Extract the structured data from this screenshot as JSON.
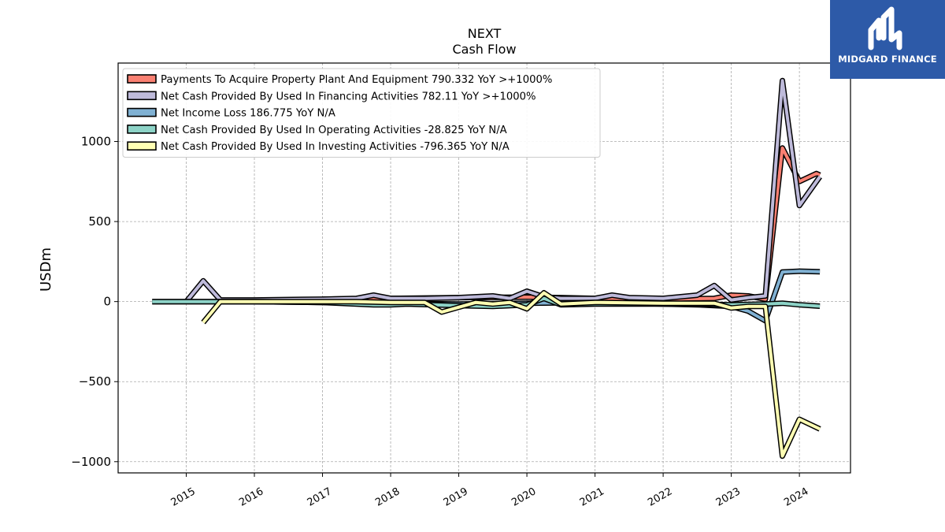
{
  "brand": {
    "name": "MIDGARD FINANCE",
    "color": "#2d5aa8"
  },
  "chart_data": {
    "type": "line",
    "title": "NEXT",
    "subtitle": "Cash Flow",
    "xlabel": "",
    "ylabel": "USDm",
    "xlim": [
      2014.0,
      2024.75
    ],
    "ylim": [
      -1070,
      1490
    ],
    "xticks": [
      2015,
      2016,
      2017,
      2018,
      2019,
      2020,
      2021,
      2022,
      2023,
      2024
    ],
    "yticks": [
      -1000,
      -500,
      0,
      500,
      1000
    ],
    "ytick_labels": [
      "−1000",
      "−500",
      "0",
      "500",
      "1000"
    ],
    "grid": true,
    "legend_position": "top-left",
    "series": [
      {
        "name": "Payments To Acquire Property Plant And Equipment  790.332 YoY >+1000%",
        "color": "#fa8072",
        "x": [
          2017.0,
          2018.0,
          2019.0,
          2020.0,
          2020.5,
          2021.0,
          2022.0,
          2022.75,
          2023.0,
          2023.25,
          2023.5,
          2023.75,
          2024.0,
          2024.25,
          2024.3
        ],
        "y": [
          15,
          20,
          25,
          28,
          25,
          20,
          15,
          20,
          40,
          35,
          15,
          960,
          750,
          800,
          790
        ]
      },
      {
        "name": "Net Cash Provided By Used In Financing Activities  782.11 YoY >+1000%",
        "color": "#bebada",
        "x": [
          2015.0,
          2015.25,
          2015.5,
          2016.0,
          2017.0,
          2017.5,
          2017.75,
          2018.0,
          2018.5,
          2019.0,
          2019.5,
          2019.75,
          2020.0,
          2020.25,
          2020.5,
          2021.0,
          2021.25,
          2021.5,
          2022.0,
          2022.5,
          2022.75,
          2023.0,
          2023.25,
          2023.5,
          2023.75,
          2024.0,
          2024.3
        ],
        "y": [
          0,
          130,
          10,
          10,
          15,
          20,
          40,
          20,
          20,
          25,
          35,
          20,
          65,
          30,
          20,
          20,
          40,
          25,
          20,
          40,
          100,
          10,
          25,
          35,
          1380,
          600,
          780
        ]
      },
      {
        "name": "Net Income Loss  186.775 YoY N/A",
        "color": "#80b1d3",
        "x": [
          2014.5,
          2015.0,
          2016.0,
          2017.0,
          2018.0,
          2019.0,
          2020.0,
          2021.0,
          2022.0,
          2022.5,
          2023.0,
          2023.25,
          2023.5,
          2023.75,
          2024.0,
          2024.3
        ],
        "y": [
          0,
          0,
          0,
          -5,
          -10,
          -15,
          -10,
          -5,
          -15,
          -20,
          -30,
          -60,
          -120,
          185,
          190,
          187
        ]
      },
      {
        "name": "Net Cash Provided By Used In Operating Activities  -28.825 YoY N/A",
        "color": "#8dd3c7",
        "x": [
          2014.5,
          2015.0,
          2016.0,
          2017.0,
          2017.75,
          2018.0,
          2018.25,
          2019.0,
          2019.5,
          2020.0,
          2020.25,
          2020.5,
          2021.0,
          2022.0,
          2022.5,
          2023.0,
          2023.5,
          2023.75,
          2024.0,
          2024.3
        ],
        "y": [
          0,
          0,
          0,
          -5,
          -20,
          -20,
          -15,
          -25,
          -30,
          -20,
          20,
          -20,
          -15,
          -15,
          -15,
          -20,
          -15,
          -10,
          -20,
          -29
        ]
      },
      {
        "name": "Net Cash Provided By Used In Investing Activities  -796.365 YoY N/A",
        "color": "#ffffb3",
        "x": [
          2015.25,
          2015.5,
          2016.0,
          2017.0,
          2017.5,
          2018.0,
          2018.5,
          2018.75,
          2019.0,
          2019.25,
          2019.5,
          2019.75,
          2020.0,
          2020.25,
          2020.5,
          2021.0,
          2022.0,
          2022.75,
          2023.0,
          2023.25,
          2023.5,
          2023.75,
          2024.0,
          2024.3
        ],
        "y": [
          -130,
          0,
          0,
          0,
          0,
          -5,
          -5,
          -65,
          -35,
          -5,
          -15,
          -5,
          -45,
          55,
          -15,
          -5,
          -10,
          -10,
          -40,
          -30,
          -30,
          -965,
          -735,
          -796
        ]
      }
    ]
  }
}
